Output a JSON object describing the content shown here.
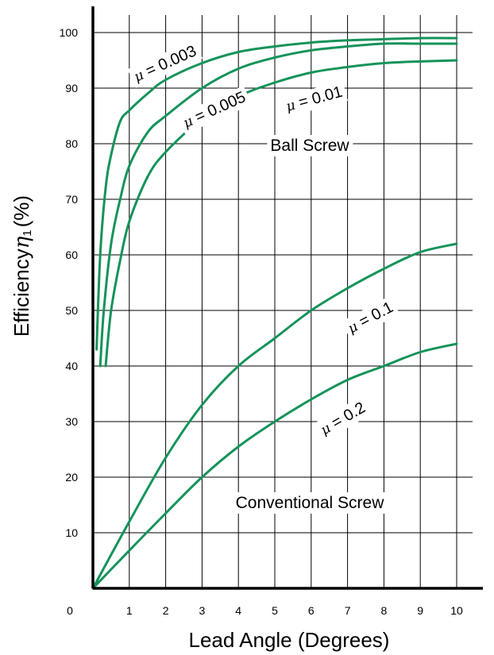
{
  "chart_data": {
    "type": "line",
    "xlabel": "Lead Angle (Degrees)",
    "ylabel_prefix": "Efficiency",
    "ylabel_symbol": "η",
    "ylabel_subscript": "1",
    "ylabel_unit": "(%)",
    "xlim": [
      0,
      10
    ],
    "ylim": [
      0,
      100
    ],
    "x_ticks": [
      "0",
      "1",
      "2",
      "3",
      "4",
      "5",
      "6",
      "7",
      "8",
      "9",
      "10"
    ],
    "y_ticks": [
      "10",
      "20",
      "30",
      "40",
      "50",
      "60",
      "70",
      "80",
      "90",
      "100"
    ],
    "grid": true,
    "line_color": "#14935a",
    "region_labels": {
      "ball_screw": "Ball Screw",
      "conventional_screw": "Conventional Screw"
    },
    "series": [
      {
        "name": "μ = 0.003",
        "mu_symbol": "μ",
        "mu_value": " = 0.003",
        "points": [
          [
            0.1,
            43
          ],
          [
            0.2,
            60
          ],
          [
            0.35,
            72
          ],
          [
            0.5,
            78
          ],
          [
            0.75,
            84
          ],
          [
            1.0,
            86
          ],
          [
            1.5,
            89
          ],
          [
            2.0,
            91.5
          ],
          [
            3.0,
            94.5
          ],
          [
            4.0,
            96.5
          ],
          [
            5.0,
            97.5
          ],
          [
            6.0,
            98.2
          ],
          [
            7.0,
            98.6
          ],
          [
            8.0,
            98.8
          ],
          [
            9.0,
            99
          ],
          [
            10.0,
            99
          ]
        ]
      },
      {
        "name": "μ = 0.005",
        "mu_symbol": "μ",
        "mu_value": " = 0.005",
        "points": [
          [
            0.2,
            40
          ],
          [
            0.3,
            50
          ],
          [
            0.5,
            62
          ],
          [
            0.75,
            70
          ],
          [
            1.0,
            76
          ],
          [
            1.5,
            82
          ],
          [
            2.0,
            85
          ],
          [
            3.0,
            90
          ],
          [
            4.0,
            93.5
          ],
          [
            5.0,
            95.5
          ],
          [
            6.0,
            96.8
          ],
          [
            7.0,
            97.5
          ],
          [
            8.0,
            98
          ],
          [
            9.0,
            98
          ],
          [
            10.0,
            98
          ]
        ]
      },
      {
        "name": "μ = 0.01",
        "mu_symbol": "μ",
        "mu_value": " = 0.01",
        "points": [
          [
            0.35,
            40
          ],
          [
            0.5,
            50
          ],
          [
            0.75,
            59
          ],
          [
            1.0,
            66
          ],
          [
            1.5,
            74
          ],
          [
            2.0,
            78.5
          ],
          [
            3.0,
            84.5
          ],
          [
            4.0,
            88.5
          ],
          [
            5.0,
            91
          ],
          [
            6.0,
            92.8
          ],
          [
            7.0,
            93.8
          ],
          [
            8.0,
            94.5
          ],
          [
            9.0,
            94.8
          ],
          [
            10.0,
            95
          ]
        ]
      },
      {
        "name": "μ = 0.1",
        "mu_symbol": "μ",
        "mu_value": " = 0.1",
        "points": [
          [
            0,
            0
          ],
          [
            1,
            12
          ],
          [
            2,
            23.5
          ],
          [
            3,
            33
          ],
          [
            4,
            40
          ],
          [
            5,
            45
          ],
          [
            6,
            50
          ],
          [
            7,
            54
          ],
          [
            8,
            57.5
          ],
          [
            9,
            60.5
          ],
          [
            10,
            62
          ]
        ]
      },
      {
        "name": "μ = 0.2",
        "mu_symbol": "μ",
        "mu_value": " = 0.2",
        "points": [
          [
            0,
            0
          ],
          [
            1,
            6.8
          ],
          [
            2,
            13.5
          ],
          [
            3,
            20
          ],
          [
            4,
            25.5
          ],
          [
            5,
            30
          ],
          [
            6,
            34
          ],
          [
            7,
            37.5
          ],
          [
            8,
            40
          ],
          [
            9,
            42.5
          ],
          [
            10,
            44
          ]
        ]
      }
    ]
  }
}
